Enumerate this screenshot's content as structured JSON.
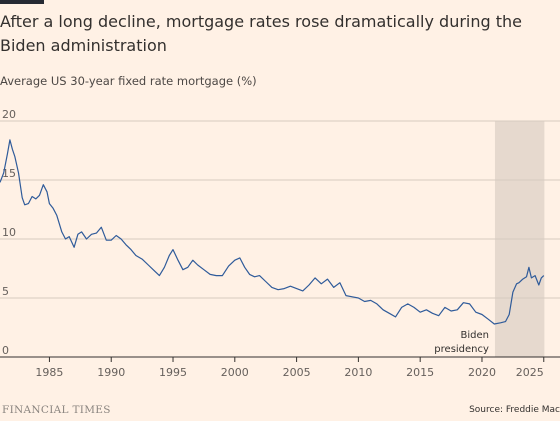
{
  "title": "After a long decline, mortgage rates rose dramatically during the Biden administration",
  "subtitle": "Average US 30-year fixed rate mortgage (%)",
  "footer": {
    "brand": "FINANCIAL TIMES",
    "source": "Source: Freddie Mac"
  },
  "colors": {
    "background": "#fff1e5",
    "line": "#2f5b9a",
    "shade": "#e6d9ce",
    "grid": "#d7cbc0",
    "axis": "#33302e"
  },
  "chart_data": {
    "type": "line",
    "title": "After a long decline, mortgage rates rose dramatically during the Biden administration",
    "ylabel": "Average US 30-year fixed rate mortgage (%)",
    "xlabel": "",
    "xlim": [
      1981.0,
      2025.1
    ],
    "ylim": [
      0,
      20
    ],
    "grid": true,
    "yticks": [
      0,
      5,
      10,
      15,
      20
    ],
    "ytick_labels": [
      "0",
      "5",
      "10",
      "15",
      "20"
    ],
    "xticks": [
      1985,
      1990,
      1995,
      2000,
      2005,
      2010,
      2015,
      2020,
      2025
    ],
    "xtick_labels": [
      "1985",
      "1990",
      "1995",
      "2000",
      "2005",
      "2010",
      "2015",
      "2020",
      "2025"
    ],
    "shaded_region": {
      "x": [
        2021.05,
        2025.05
      ],
      "label": [
        "Biden",
        "presidency"
      ]
    },
    "series": [
      {
        "x": [
          1981.0,
          1981.3,
          1981.6,
          1981.8,
          1982.0,
          1982.2,
          1982.5,
          1982.8,
          1983.0,
          1983.3,
          1983.6,
          1983.9,
          1984.2,
          1984.5,
          1984.8,
          1985.0,
          1985.3,
          1985.6,
          1986.0,
          1986.3,
          1986.6,
          1987.0,
          1987.3,
          1987.6,
          1988.0,
          1988.4,
          1988.8,
          1989.2,
          1989.6,
          1990.0,
          1990.4,
          1990.8,
          1991.2,
          1991.6,
          1992.0,
          1992.5,
          1993.0,
          1993.5,
          1993.9,
          1994.3,
          1994.7,
          1995.0,
          1995.4,
          1995.8,
          1996.2,
          1996.6,
          1997.0,
          1997.5,
          1998.0,
          1998.5,
          1999.0,
          1999.5,
          2000.0,
          2000.4,
          2000.8,
          2001.2,
          2001.6,
          2002.0,
          2002.5,
          2003.0,
          2003.5,
          2004.0,
          2004.5,
          2005.0,
          2005.5,
          2006.0,
          2006.5,
          2007.0,
          2007.5,
          2008.0,
          2008.5,
          2009.0,
          2009.5,
          2010.0,
          2010.5,
          2011.0,
          2011.5,
          2012.0,
          2012.5,
          2013.0,
          2013.5,
          2014.0,
          2014.5,
          2015.0,
          2015.5,
          2016.0,
          2016.5,
          2017.0,
          2017.5,
          2018.0,
          2018.5,
          2019.0,
          2019.5,
          2020.0,
          2020.5,
          2021.0,
          2021.5,
          2021.9,
          2022.2,
          2022.5,
          2022.8,
          2023.0,
          2023.3,
          2023.6,
          2023.8,
          2024.0,
          2024.3,
          2024.6,
          2024.8,
          2025.0
        ],
        "values": [
          14.8,
          15.6,
          17.2,
          18.4,
          17.6,
          17.0,
          15.6,
          13.5,
          12.9,
          13.0,
          13.6,
          13.4,
          13.7,
          14.6,
          14.0,
          13.0,
          12.6,
          12.0,
          10.6,
          10.0,
          10.2,
          9.3,
          10.4,
          10.6,
          10.0,
          10.4,
          10.5,
          11.0,
          9.9,
          9.9,
          10.3,
          10.0,
          9.5,
          9.1,
          8.6,
          8.3,
          7.8,
          7.3,
          6.9,
          7.6,
          8.6,
          9.1,
          8.2,
          7.4,
          7.6,
          8.2,
          7.8,
          7.4,
          7.0,
          6.9,
          6.9,
          7.7,
          8.2,
          8.4,
          7.6,
          7.0,
          6.8,
          6.9,
          6.4,
          5.9,
          5.7,
          5.8,
          6.0,
          5.8,
          5.6,
          6.1,
          6.7,
          6.2,
          6.6,
          5.9,
          6.3,
          5.2,
          5.1,
          5.0,
          4.7,
          4.8,
          4.5,
          4.0,
          3.7,
          3.4,
          4.2,
          4.5,
          4.2,
          3.8,
          4.0,
          3.7,
          3.5,
          4.2,
          3.9,
          4.0,
          4.6,
          4.5,
          3.8,
          3.6,
          3.2,
          2.8,
          2.9,
          3.0,
          3.6,
          5.5,
          6.2,
          6.3,
          6.6,
          6.8,
          7.6,
          6.7,
          6.9,
          6.1,
          6.7,
          6.9
        ]
      }
    ]
  }
}
